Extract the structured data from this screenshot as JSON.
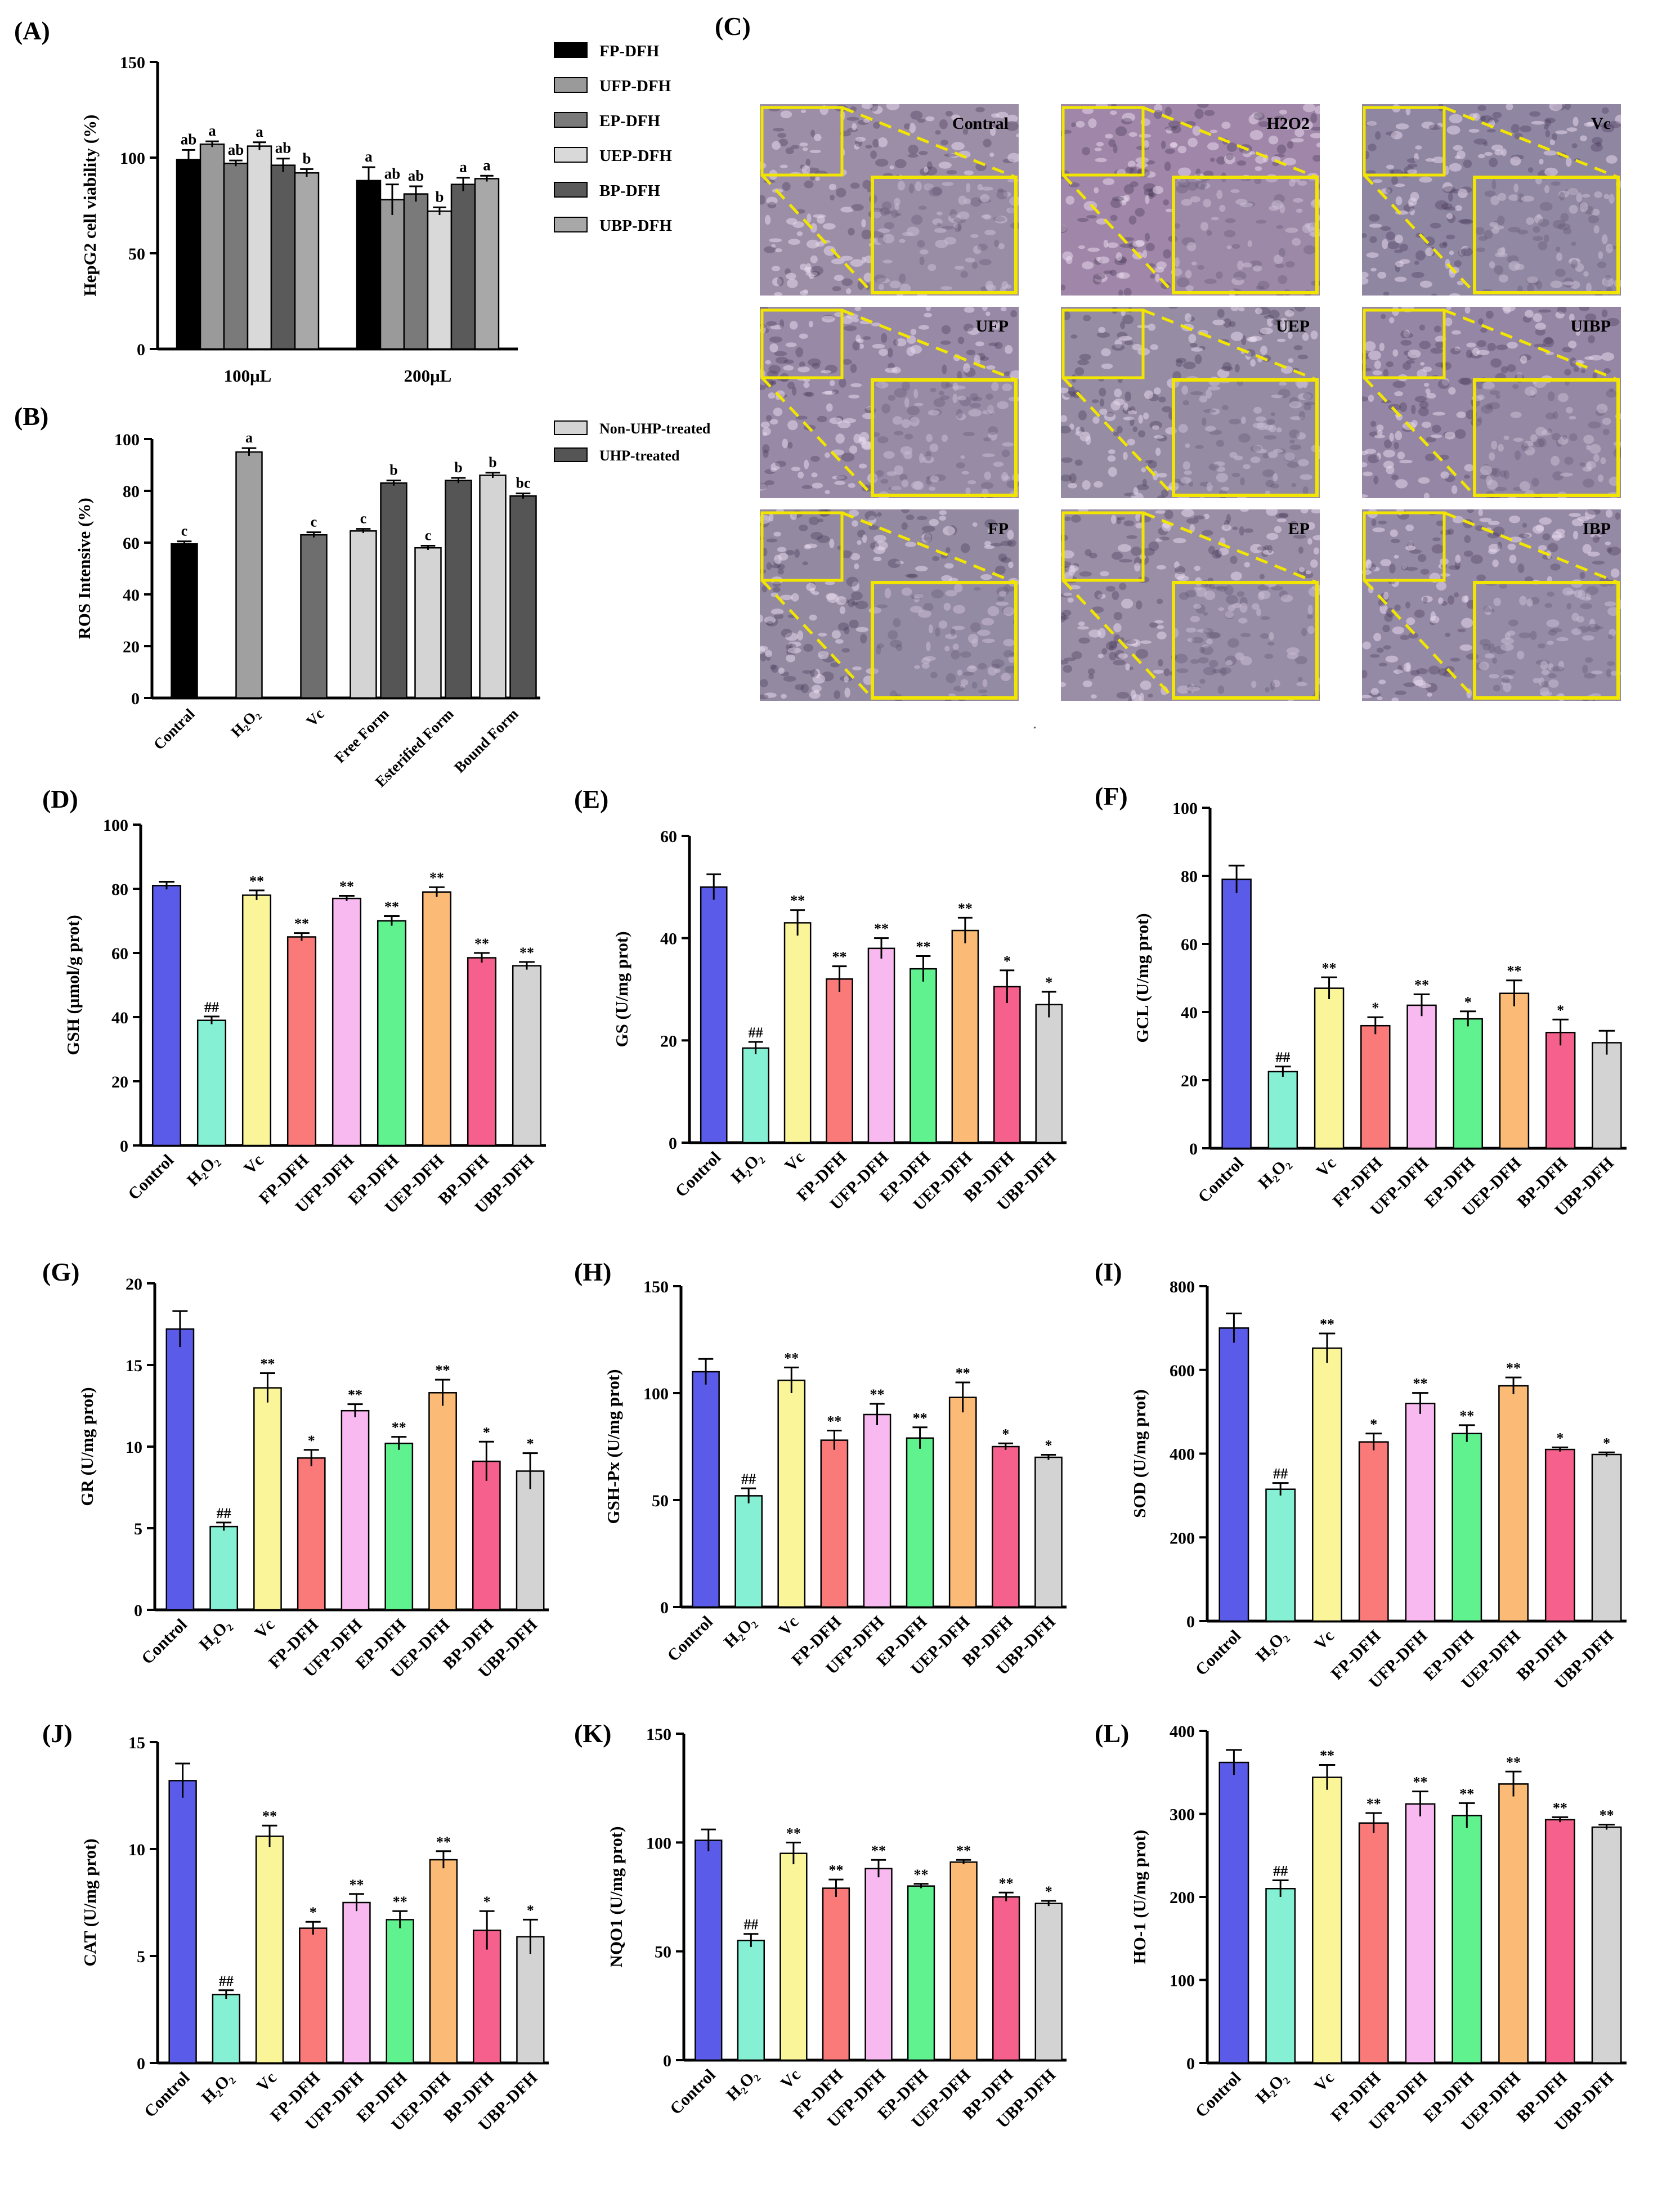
{
  "micrographs": {
    "panel_label": "(C)",
    "cells": [
      {
        "label": "Contral",
        "tint": "#9c8ea6"
      },
      {
        "label": "H2O2",
        "tint": "#a086a8"
      },
      {
        "label": "Vc",
        "tint": "#8f86a2"
      },
      {
        "label": "UFP",
        "tint": "#988aa6"
      },
      {
        "label": "UEP",
        "tint": "#968ca4"
      },
      {
        "label": "UIBP",
        "tint": "#9486a4"
      },
      {
        "label": "FP",
        "tint": "#938aa2"
      },
      {
        "label": "EP",
        "tint": "#9a8ea6"
      },
      {
        "label": "IBP",
        "tint": "#958aa6"
      }
    ]
  },
  "footer_mark": ".",
  "chart_data": [
    {
      "panel": "(A)",
      "type": "bar",
      "ylabel": "HepG2 cell viability (%)",
      "ylim": [
        0,
        150
      ],
      "yticks": [
        0,
        50,
        100,
        150
      ],
      "categories": [
        "100μL",
        "200μL"
      ],
      "legend_position": "right",
      "series": [
        {
          "name": "FP-DFH",
          "color": "#000000",
          "values": [
            99,
            88
          ],
          "errors": [
            5,
            7
          ],
          "letters": [
            "ab",
            "a"
          ]
        },
        {
          "name": "UFP-DFH",
          "color": "#9a9a9a",
          "values": [
            107,
            78
          ],
          "errors": [
            1.5,
            8
          ],
          "letters": [
            "a",
            "ab"
          ]
        },
        {
          "name": "EP-DFH",
          "color": "#7a7a7a",
          "values": [
            97,
            81
          ],
          "errors": [
            1.5,
            4
          ],
          "letters": [
            "ab",
            "ab"
          ]
        },
        {
          "name": "UEP-DFH",
          "color": "#d9d9d9",
          "values": [
            106,
            72
          ],
          "errors": [
            2,
            2
          ],
          "letters": [
            "a",
            "b"
          ]
        },
        {
          "name": "BP-DFH",
          "color": "#5a5a5a",
          "values": [
            96,
            86
          ],
          "errors": [
            3.5,
            3.5
          ],
          "letters": [
            "ab",
            "a"
          ]
        },
        {
          "name": "UBP-DFH",
          "color": "#a8a8a8",
          "values": [
            92,
            89
          ],
          "errors": [
            2,
            1.5
          ],
          "letters": [
            "b",
            "a"
          ]
        }
      ]
    },
    {
      "panel": "(B)",
      "type": "bar",
      "ylabel": "ROS Intensive (%)",
      "ylim": [
        0,
        100
      ],
      "yticks": [
        0,
        20,
        40,
        60,
        80,
        100
      ],
      "categories": [
        "Contral",
        "H₂O₂",
        "Vc",
        "Free Form",
        "Esterified Form",
        "Bound Form"
      ],
      "legend_position": "top-right",
      "series": [
        {
          "name": "Non-UHP-treated",
          "color": "#d4d4d4"
        },
        {
          "name": "UHP-treated",
          "color": "#555555"
        }
      ],
      "bars": [
        {
          "category": 0,
          "value": 59.5,
          "error": 1.0,
          "color": "#000000",
          "letter": "c"
        },
        {
          "category": 1,
          "value": 95,
          "error": 1.5,
          "color": "#a0a0a0",
          "letter": "a"
        },
        {
          "category": 2,
          "value": 63,
          "error": 1.0,
          "color": "#6e6e6e",
          "letter": "c"
        },
        {
          "category": 3,
          "series": 0,
          "value": 64.5,
          "error": 0.8,
          "letter": "c"
        },
        {
          "category": 3,
          "series": 1,
          "value": 83,
          "error": 1.0,
          "letter": "b"
        },
        {
          "category": 4,
          "series": 0,
          "value": 58,
          "error": 0.8,
          "letter": "c"
        },
        {
          "category": 4,
          "series": 1,
          "value": 84,
          "error": 1.0,
          "letter": "b"
        },
        {
          "category": 5,
          "series": 0,
          "value": 86,
          "error": 1.0,
          "letter": "b"
        },
        {
          "category": 5,
          "series": 1,
          "value": 78,
          "error": 1.0,
          "letter": "bc"
        }
      ]
    },
    {
      "panel": "(D)",
      "type": "bar",
      "ylabel": "GSH (μmol/g prot)",
      "ylim": [
        0,
        100
      ],
      "yticks": [
        0,
        20,
        40,
        60,
        80,
        100
      ],
      "categories": [
        "Control",
        "H₂O₂",
        "Vc",
        "FP-DFH",
        "UFP-DFH",
        "EP-DFH",
        "UEP-DFH",
        "BP-DFH",
        "UBP-DFH"
      ],
      "values": [
        81,
        39,
        78,
        65,
        77,
        70,
        79,
        58.5,
        56
      ],
      "errors": [
        1.2,
        1.2,
        1.5,
        1.2,
        0.8,
        1.5,
        1.5,
        1.5,
        1.2
      ],
      "annotations": [
        "",
        "##",
        "**",
        "**",
        "**",
        "**",
        "**",
        "**",
        "**"
      ]
    },
    {
      "panel": "(E)",
      "type": "bar",
      "ylabel": "GS (U/mg prot)",
      "ylim": [
        0,
        60
      ],
      "yticks": [
        0,
        20,
        40,
        60
      ],
      "categories": [
        "Control",
        "H₂O₂",
        "Vc",
        "FP-DFH",
        "UFP-DFH",
        "EP-DFH",
        "UEP-DFH",
        "BP-DFH",
        "UBP-DFH"
      ],
      "values": [
        50,
        18.5,
        43,
        32,
        38,
        34,
        41.5,
        30.5,
        27
      ],
      "errors": [
        2.5,
        1.2,
        2.5,
        2.5,
        2,
        2.5,
        2.5,
        3.2,
        2.5
      ],
      "annotations": [
        "",
        "##",
        "**",
        "**",
        "**",
        "**",
        "**",
        "*",
        "*"
      ]
    },
    {
      "panel": "(F)",
      "type": "bar",
      "ylabel": "GCL (U/mg prot)",
      "ylim": [
        0,
        100
      ],
      "yticks": [
        0,
        20,
        40,
        60,
        80,
        100
      ],
      "categories": [
        "Control",
        "H₂O₂",
        "Vc",
        "FP-DFH",
        "UFP-DFH",
        "EP-DFH",
        "UEP-DFH",
        "BP-DFH",
        "UBP-DFH"
      ],
      "values": [
        79,
        22.5,
        47,
        36,
        42,
        38,
        45.5,
        34,
        31
      ],
      "errors": [
        4,
        1.5,
        3.2,
        2.5,
        3.2,
        2.2,
        3.8,
        3.8,
        3.5
      ],
      "annotations": [
        "",
        "##",
        "**",
        "*",
        "**",
        "*",
        "**",
        "*",
        ""
      ]
    },
    {
      "panel": "(G)",
      "type": "bar",
      "ylabel": "GR (U/mg prot)",
      "ylim": [
        0,
        20
      ],
      "yticks": [
        0,
        5,
        10,
        15,
        20
      ],
      "categories": [
        "Control",
        "H₂O₂",
        "Vc",
        "FP-DFH",
        "UFP-DFH",
        "EP-DFH",
        "UEP-DFH",
        "BP-DFH",
        "UBP-DFH"
      ],
      "values": [
        17.2,
        5.1,
        13.6,
        9.3,
        12.2,
        10.2,
        13.3,
        9.1,
        8.5
      ],
      "errors": [
        1.1,
        0.25,
        0.9,
        0.5,
        0.4,
        0.4,
        0.8,
        1.2,
        1.1
      ],
      "annotations": [
        "",
        "##",
        "**",
        "*",
        "**",
        "**",
        "**",
        "*",
        "*"
      ]
    },
    {
      "panel": "(H)",
      "type": "bar",
      "ylabel": "GSH-Px (U/mg prot)",
      "ylim": [
        0,
        150
      ],
      "yticks": [
        0,
        50,
        100,
        150
      ],
      "categories": [
        "Control",
        "H₂O₂",
        "Vc",
        "FP-DFH",
        "UFP-DFH",
        "EP-DFH",
        "UEP-DFH",
        "BP-DFH",
        "UBP-DFH"
      ],
      "values": [
        110,
        52,
        106,
        78,
        90,
        79,
        98,
        75,
        70
      ],
      "errors": [
        6,
        3.5,
        6,
        4.5,
        5,
        5,
        7,
        1.5,
        1.2
      ],
      "annotations": [
        "",
        "##",
        "**",
        "**",
        "**",
        "**",
        "**",
        "*",
        "*"
      ]
    },
    {
      "panel": "(I)",
      "type": "bar",
      "ylabel": "SOD (U/mg prot)",
      "ylim": [
        0,
        800
      ],
      "yticks": [
        0,
        200,
        400,
        600,
        800
      ],
      "categories": [
        "Control",
        "H₂O₂",
        "Vc",
        "FP-DFH",
        "UFP-DFH",
        "EP-DFH",
        "UEP-DFH",
        "BP-DFH",
        "UBP-DFH"
      ],
      "values": [
        700,
        315,
        652,
        428,
        520,
        448,
        562,
        410,
        398
      ],
      "errors": [
        35,
        15,
        35,
        20,
        25,
        20,
        20,
        5,
        5
      ],
      "annotations": [
        "",
        "##",
        "**",
        "*",
        "**",
        "**",
        "**",
        "*",
        "*"
      ]
    },
    {
      "panel": "(J)",
      "type": "bar",
      "ylabel": "CAT (U/mg prot)",
      "ylim": [
        0,
        15
      ],
      "yticks": [
        0,
        5,
        10,
        15
      ],
      "categories": [
        "Control",
        "H₂O₂",
        "Vc",
        "FP-DFH",
        "UFP-DFH",
        "EP-DFH",
        "UEP-DFH",
        "BP-DFH",
        "UBP-DFH"
      ],
      "values": [
        13.2,
        3.2,
        10.6,
        6.3,
        7.5,
        6.7,
        9.5,
        6.2,
        5.9
      ],
      "errors": [
        0.8,
        0.2,
        0.5,
        0.3,
        0.4,
        0.4,
        0.4,
        0.9,
        0.8
      ],
      "annotations": [
        "",
        "##",
        "**",
        "*",
        "**",
        "**",
        "**",
        "*",
        "*"
      ]
    },
    {
      "panel": "(K)",
      "type": "bar",
      "ylabel": "NQO1 (U/mg prot)",
      "ylim": [
        0,
        150
      ],
      "yticks": [
        0,
        50,
        100,
        150
      ],
      "categories": [
        "Control",
        "H₂O₂",
        "Vc",
        "FP-DFH",
        "UFP-DFH",
        "EP-DFH",
        "UEP-DFH",
        "BP-DFH",
        "UBP-DFH"
      ],
      "values": [
        101,
        55,
        95,
        79,
        88,
        80,
        91,
        75,
        72
      ],
      "errors": [
        5,
        3,
        5,
        4,
        4,
        1,
        1,
        2,
        1.2
      ],
      "annotations": [
        "",
        "##",
        "**",
        "**",
        "**",
        "**",
        "**",
        "**",
        "*"
      ]
    },
    {
      "panel": "(L)",
      "type": "bar",
      "ylabel": "HO-1 (U/mg prot)",
      "ylim": [
        0,
        400
      ],
      "yticks": [
        0,
        100,
        200,
        300,
        400
      ],
      "categories": [
        "Control",
        "H₂O₂",
        "Vc",
        "FP-DFH",
        "UFP-DFH",
        "EP-DFH",
        "UEP-DFH",
        "BP-DFH",
        "UBP-DFH"
      ],
      "values": [
        362,
        210,
        344,
        289,
        312,
        298,
        336,
        293,
        284
      ],
      "errors": [
        15,
        10,
        15,
        12,
        15,
        15,
        15,
        3,
        3
      ],
      "annotations": [
        "",
        "##",
        "**",
        "**",
        "**",
        "**",
        "**",
        "**",
        "**"
      ]
    }
  ],
  "bar_palette": [
    "#5b5bea",
    "#86f0d4",
    "#fbf59a",
    "#fa7a7a",
    "#f8b8f0",
    "#5ff28e",
    "#fbbb76",
    "#f5608c",
    "#d3d3d3"
  ]
}
